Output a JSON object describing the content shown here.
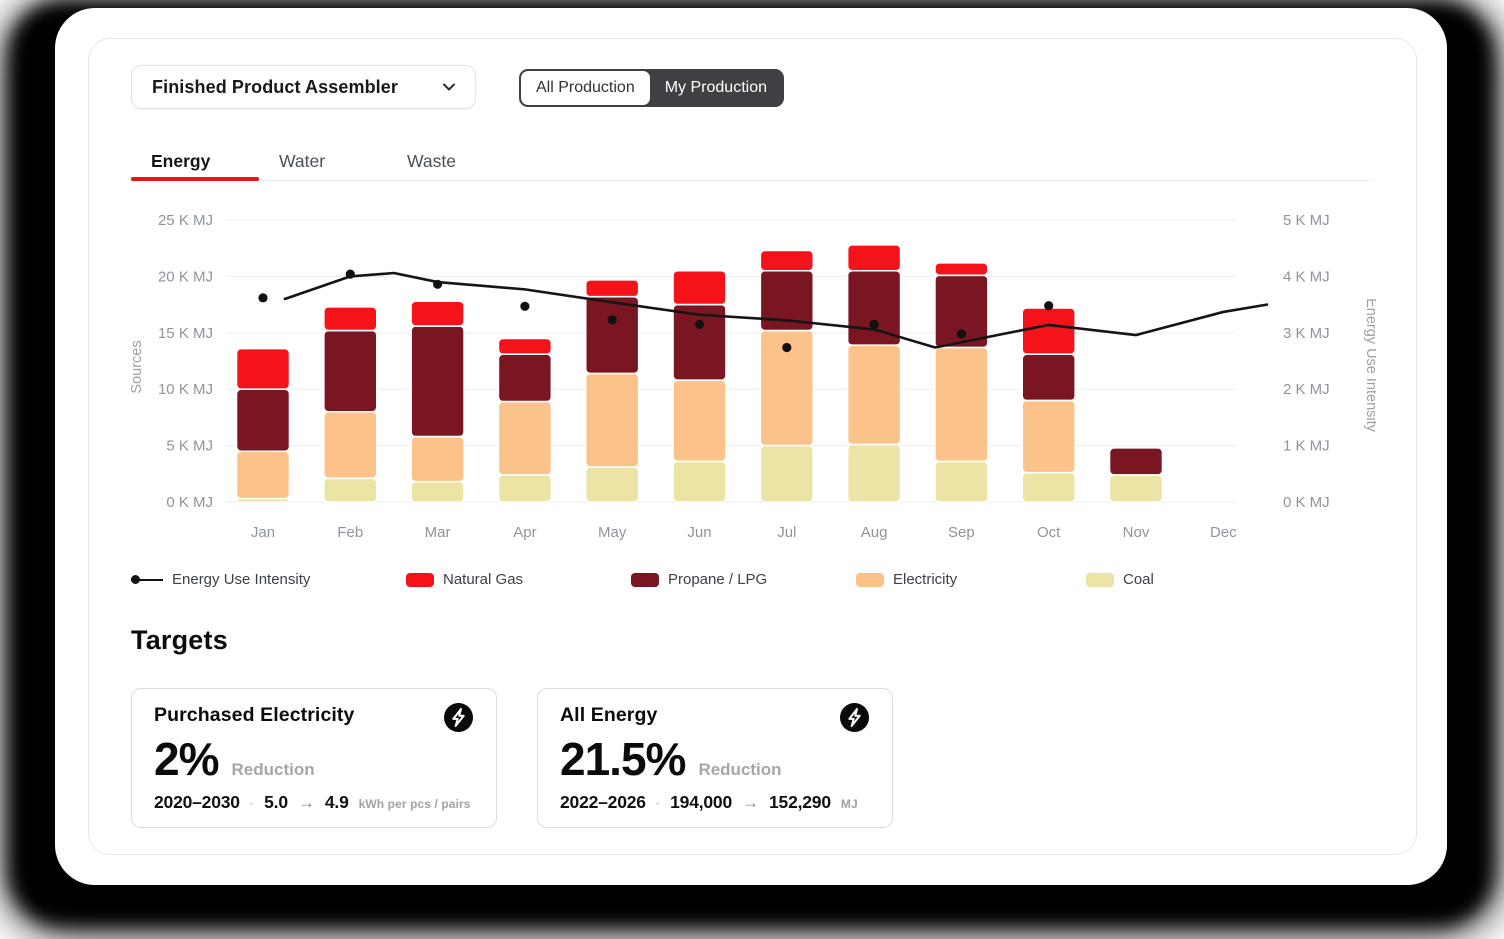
{
  "header": {
    "dropdown": {
      "label": "Finished Product Assembler"
    },
    "toggle": {
      "options": [
        "All Production",
        "My Production"
      ],
      "selected": "My Production"
    }
  },
  "tabs": {
    "items": [
      "Energy",
      "Water",
      "Waste"
    ],
    "active": "Energy"
  },
  "chart_data": {
    "type": "bar",
    "subtype": "stacked-bars-with-line-overlay",
    "categories": [
      "Jan",
      "Feb",
      "Mar",
      "Apr",
      "May",
      "Jun",
      "Jul",
      "Aug",
      "Sep",
      "Oct",
      "Nov",
      "Dec"
    ],
    "series": [
      {
        "name": "Coal",
        "color": "#ECE4A5",
        "values": [
          0.3,
          2.1,
          1.8,
          2.4,
          3.1,
          3.6,
          5.0,
          5.1,
          3.6,
          2.6,
          2.4,
          0
        ]
      },
      {
        "name": "Electricity",
        "color": "#FBC38A",
        "values": [
          4.2,
          5.9,
          4.0,
          6.5,
          8.3,
          7.2,
          10.2,
          8.8,
          10.1,
          6.4,
          0,
          0
        ]
      },
      {
        "name": "Propane / LPG",
        "color": "#7A1622",
        "values": [
          5.5,
          7.2,
          9.8,
          4.2,
          6.8,
          6.7,
          5.3,
          6.6,
          6.4,
          4.1,
          2.4,
          0
        ]
      },
      {
        "name": "Natural Gas",
        "color": "#F4131B",
        "values": [
          3.6,
          2.1,
          2.2,
          1.4,
          1.5,
          3.0,
          1.8,
          2.3,
          1.1,
          4.1,
          0,
          0
        ]
      }
    ],
    "left_axis": {
      "title": "Sources",
      "unit": "K MJ",
      "range": [
        0,
        25
      ],
      "ticks": [
        "0 K MJ",
        "5 K MJ",
        "10 K MJ",
        "15 K MJ",
        "20 K MJ",
        "25 K MJ"
      ]
    },
    "right_axis": {
      "title": "Energy Use Intensity",
      "unit": "K MJ",
      "range": [
        0,
        5
      ],
      "ticks": [
        "0 K MJ",
        "1 K MJ",
        "2 K MJ",
        "3 K MJ",
        "4 K MJ",
        "5 K MJ"
      ]
    },
    "line": {
      "name": "Energy Use Intensity",
      "axis": "right",
      "points_month_value": [
        [
          0.25,
          3.6
        ],
        [
          1,
          4.0
        ],
        [
          1.5,
          4.06
        ],
        [
          2,
          3.9
        ],
        [
          3,
          3.77
        ],
        [
          4,
          3.54
        ],
        [
          5,
          3.32
        ],
        [
          6,
          3.22
        ],
        [
          7,
          3.06
        ],
        [
          7.7,
          2.74
        ],
        [
          9,
          3.14
        ],
        [
          10,
          2.96
        ],
        [
          11,
          3.37
        ],
        [
          11.5,
          3.5
        ]
      ]
    },
    "dots": {
      "name": "Energy Use Intensity monthly points",
      "axis": "right",
      "values": [
        3.62,
        4.04,
        3.86,
        3.47,
        3.23,
        3.15,
        2.74,
        3.15,
        2.98,
        3.48,
        null,
        null
      ]
    }
  },
  "legend": [
    {
      "label": "Energy Use Intensity",
      "marker": "line-dot",
      "color": "#141414"
    },
    {
      "label": "Natural Gas",
      "marker": "swatch",
      "color": "#F4131B"
    },
    {
      "label": "Propane / LPG",
      "marker": "swatch",
      "color": "#7A1622"
    },
    {
      "label": "Electricity",
      "marker": "swatch",
      "color": "#FBC38A"
    },
    {
      "label": "Coal",
      "marker": "swatch",
      "color": "#ECE4A5"
    }
  ],
  "targets": {
    "heading": "Targets",
    "separator": "·",
    "arrow": "→",
    "cards": [
      {
        "title": "Purchased Electricity",
        "icon": "lightning-icon",
        "percent": "2%",
        "percent_label": "Reduction",
        "period": "2020–2030",
        "from": "5.0",
        "to": "4.9",
        "unit": "kWh per pcs / pairs"
      },
      {
        "title": "All Energy",
        "icon": "lightning-icon",
        "percent": "21.5%",
        "percent_label": "Reduction",
        "period": "2022–2026",
        "from": "194,000",
        "to": "152,290",
        "unit": "MJ"
      }
    ]
  }
}
